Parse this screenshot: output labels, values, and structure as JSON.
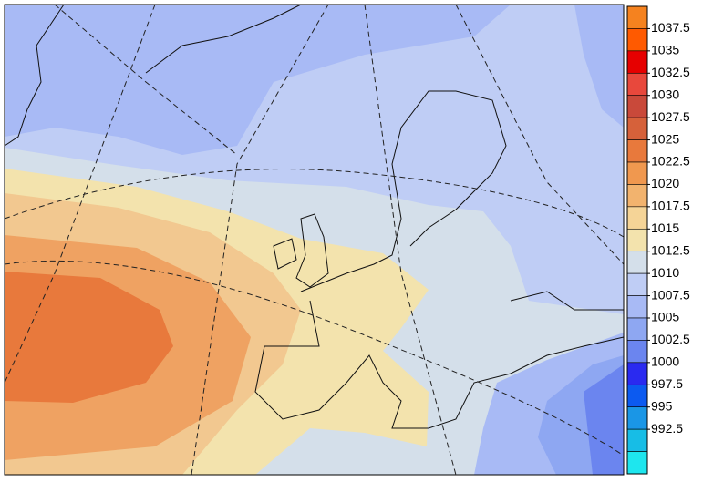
{
  "colorbar": {
    "levels": [
      1037.5,
      1035,
      1032.5,
      1030,
      1027.5,
      1025,
      1022.5,
      1020,
      1017.5,
      1015,
      1012.5,
      1010,
      1007.5,
      1005,
      1002.5,
      1000,
      997.5,
      995,
      992.5
    ],
    "colors": [
      "#f5821f",
      "#ff5a00",
      "#e60000",
      "#e8483c",
      "#c9493a",
      "#d6613a",
      "#e8793c",
      "#f0984f",
      "#f2b36e",
      "#f5d497",
      "#f3e3ad",
      "#d4dfea",
      "#bfcdf5",
      "#a8baf5",
      "#8ea7f2",
      "#6b85ef",
      "#2a2af0",
      "#0c5af0",
      "#1a96e6",
      "#17bde6",
      "#1ee6ee"
    ]
  }
}
